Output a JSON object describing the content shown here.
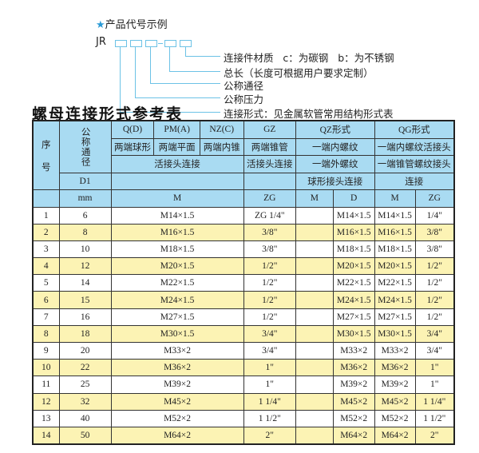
{
  "example": {
    "title": "产品代号示例",
    "prefix": "JR",
    "labels": [
      "连接件材质   c：为碳钢   b：为不锈钢",
      "总长（长度可根据用户要求定制）",
      "公称通径",
      "公称压力",
      "连接形式：见金属软管常用结构形式表"
    ]
  },
  "table_title": "螺母连接形式参考表",
  "header": {
    "seq": "序\n\n号",
    "dn": "公称通径",
    "d1": "D1",
    "mm": "mm",
    "q": "Q(D)",
    "pm": "PM(A)",
    "nz": "NZ(C)",
    "gz": "GZ",
    "qz": "QZ形式",
    "qg": "QG形式",
    "q2": "两端球形",
    "pm2": "两端平面",
    "nz2": "两端内锥",
    "gz2": "两端锥管",
    "qz2": "一端内螺纹",
    "qg2": "一端内螺纹活接头",
    "hj": "活接头连接",
    "gz3": "活接头连接",
    "qz3": "一端外螺纹",
    "qg3": "一端锥管螺纹接头",
    "qz4": "球形接头连接",
    "qg4": "连接",
    "m": "M",
    "zg": "ZG",
    "qzm": "M",
    "qzd": "D",
    "qgm": "M",
    "qgzg": "ZG"
  },
  "rows": [
    {
      "no": "1",
      "dn": "6",
      "m": "M14×1.5",
      "zg": "ZG 1/4\"",
      "qzm": "",
      "qzd": "M14×1.5",
      "qgm": "M14×1.5",
      "qgzg": "1/4\""
    },
    {
      "no": "2",
      "dn": "8",
      "m": "M16×1.5",
      "zg": "3/8\"",
      "qzm": "",
      "qzd": "M16×1.5",
      "qgm": "M16×1.5",
      "qgzg": "3/8\""
    },
    {
      "no": "3",
      "dn": "10",
      "m": "M18×1.5",
      "zg": "3/8\"",
      "qzm": "",
      "qzd": "M18×1.5",
      "qgm": "M18×1.5",
      "qgzg": "3/8\""
    },
    {
      "no": "4",
      "dn": "12",
      "m": "M20×1.5",
      "zg": "1/2\"",
      "qzm": "",
      "qzd": "M20×1.5",
      "qgm": "M20×1.5",
      "qgzg": "1/2\""
    },
    {
      "no": "5",
      "dn": "14",
      "m": "M22×1.5",
      "zg": "1/2\"",
      "qzm": "",
      "qzd": "M22×1.5",
      "qgm": "M22×1.5",
      "qgzg": "1/2\""
    },
    {
      "no": "6",
      "dn": "15",
      "m": "M24×1.5",
      "zg": "1/2\"",
      "qzm": "",
      "qzd": "M24×1.5",
      "qgm": "M24×1.5",
      "qgzg": "1/2\""
    },
    {
      "no": "7",
      "dn": "16",
      "m": "M27×1.5",
      "zg": "1/2\"",
      "qzm": "",
      "qzd": "M27×1.5",
      "qgm": "M27×1.5",
      "qgzg": "1/2\""
    },
    {
      "no": "8",
      "dn": "18",
      "m": "M30×1.5",
      "zg": "3/4\"",
      "qzm": "",
      "qzd": "M30×1.5",
      "qgm": "M30×1.5",
      "qgzg": "3/4\""
    },
    {
      "no": "9",
      "dn": "20",
      "m": "M33×2",
      "zg": "3/4\"",
      "qzm": "",
      "qzd": "M33×2",
      "qgm": "M33×2",
      "qgzg": "3/4\""
    },
    {
      "no": "10",
      "dn": "22",
      "m": "M36×2",
      "zg": "1\"",
      "qzm": "",
      "qzd": "M36×2",
      "qgm": "M36×2",
      "qgzg": "1\""
    },
    {
      "no": "11",
      "dn": "25",
      "m": "M39×2",
      "zg": "1\"",
      "qzm": "",
      "qzd": "M39×2",
      "qgm": "M39×2",
      "qgzg": "1\""
    },
    {
      "no": "12",
      "dn": "32",
      "m": "M45×2",
      "zg": "1 1/4\"",
      "qzm": "",
      "qzd": "M45×2",
      "qgm": "M45×2",
      "qgzg": "1 1/4\""
    },
    {
      "no": "13",
      "dn": "40",
      "m": "M52×2",
      "zg": "1 1/2\"",
      "qzm": "",
      "qzd": "M52×2",
      "qgm": "M52×2",
      "qgzg": "1 1/2\""
    },
    {
      "no": "14",
      "dn": "50",
      "m": "M64×2",
      "zg": "2\"",
      "qzm": "",
      "qzd": "M64×2",
      "qgm": "M64×2",
      "qgzg": "2\""
    }
  ],
  "colors": {
    "header_bg": "#a9dbf2",
    "stripe": "#fcf3b4",
    "accent": "#6cc2e6"
  }
}
